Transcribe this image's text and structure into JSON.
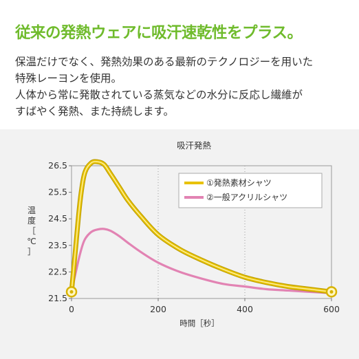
{
  "headline": "従来の発熱ウェアに吸汗速乾性をプラス。",
  "description": {
    "line1": "保温だけでなく、発熱効果のある最新のテクノロジーを用いた",
    "line2": "特殊レーヨンを使用。",
    "line3": "人体から常に発散されている蒸気などの水分に反応し繊維が",
    "line4": "すばやく発熱、また持続します。"
  },
  "colors": {
    "headline": "#6fbb2c",
    "series1": "#e8c200",
    "series2": "#e283b3",
    "background_panel": "#f2f2f2"
  },
  "chart_data": {
    "type": "line",
    "title": "吸汗発熱",
    "xlabel": "時間［秒］",
    "ylabel": "温度［℃］",
    "xlim": [
      0,
      600
    ],
    "ylim": [
      21.5,
      26.5
    ],
    "x_ticks": [
      "0",
      "200",
      "400",
      "600"
    ],
    "y_ticks": [
      "21.5",
      "22.5",
      "23.5",
      "24.5",
      "25.5",
      "26.5"
    ],
    "grid": "vertical dotted",
    "legend_position": "top-right",
    "series": [
      {
        "name": "①発熱素材シャツ",
        "x": [
          0,
          10,
          20,
          30,
          45,
          60,
          75,
          90,
          110,
          130,
          160,
          200,
          250,
          300,
          350,
          400,
          450,
          500,
          550,
          600
        ],
        "y": [
          21.75,
          23.5,
          25.2,
          26.2,
          26.6,
          26.65,
          26.55,
          26.2,
          25.7,
          25.2,
          24.6,
          23.9,
          23.35,
          22.95,
          22.6,
          22.3,
          22.1,
          21.95,
          21.85,
          21.75
        ]
      },
      {
        "name": "②一般アクリルシャツ",
        "x": [
          0,
          10,
          20,
          30,
          45,
          60,
          75,
          90,
          110,
          130,
          160,
          200,
          250,
          300,
          350,
          400,
          450,
          500,
          550,
          600
        ],
        "y": [
          21.75,
          22.5,
          23.2,
          23.7,
          24.0,
          24.1,
          24.12,
          24.05,
          23.85,
          23.6,
          23.25,
          22.85,
          22.5,
          22.25,
          22.05,
          21.95,
          21.85,
          21.8,
          21.75,
          21.7
        ]
      }
    ]
  }
}
